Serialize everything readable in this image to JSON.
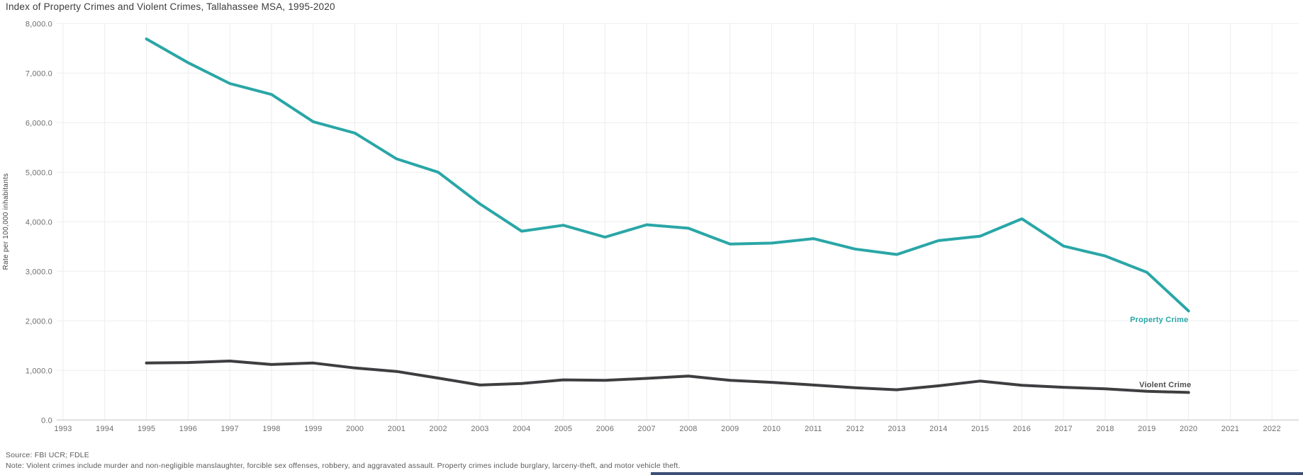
{
  "title": "Index of Property Crimes and Violent Crimes, Tallahassee MSA, 1995-2020",
  "source": "Source: FBI UCR; FDLE",
  "note": "Note: Violent crimes include murder and non-negligible manslaughter, forcible sex offenses, robbery, and aggravated assault. Property crimes include burglary, larceny-theft, and motor vehicle theft.",
  "colors": {
    "property_line": "#2aa6a7",
    "violent_line": "#3e3e41",
    "violent_label": "#4d4d4f",
    "gridline": "#ededed",
    "axis_line": "#d2d2d2",
    "tick_text": "#6e6e6e",
    "title_text": "#3c3c3c",
    "footer_bar": "#3d4f78",
    "background": "#ffffff"
  },
  "chart_data": {
    "type": "line",
    "title": "Index of Property Crimes and Violent Crimes, Tallahassee MSA, 1995-2020",
    "xlabel": "",
    "ylabel": "Rate per 100,000 inhabitants",
    "xlim": [
      1993,
      2022
    ],
    "ylim": [
      0,
      8000
    ],
    "grid": true,
    "legend_position": "line-end-labels",
    "x_tick_years": [
      1993,
      1994,
      1995,
      1996,
      1997,
      1998,
      1999,
      2000,
      2001,
      2002,
      2003,
      2004,
      2005,
      2006,
      2007,
      2008,
      2009,
      2010,
      2011,
      2012,
      2013,
      2014,
      2015,
      2016,
      2017,
      2018,
      2019,
      2020,
      2021,
      2022
    ],
    "y_tick_values": [
      8000,
      7000,
      6000,
      5000,
      4000,
      3000,
      2000,
      1000,
      0
    ],
    "y_tick_labels": [
      "8,000.0",
      "7,000.0",
      "6,000.0",
      "5,000.0",
      "4,000.0",
      "3,000.0",
      "2,000.0",
      "1,000.0",
      "0.0"
    ],
    "x": [
      1995,
      1996,
      1997,
      1998,
      1999,
      2000,
      2001,
      2002,
      2003,
      2004,
      2005,
      2006,
      2007,
      2008,
      2009,
      2010,
      2011,
      2012,
      2013,
      2014,
      2015,
      2016,
      2017,
      2018,
      2019,
      2020
    ],
    "series": [
      {
        "name": "Property Crime",
        "color": "#2aa6a7",
        "values": [
          7690,
          7210,
          6790,
          6570,
          6020,
          5790,
          5270,
          5000,
          4360,
          3810,
          3930,
          3690,
          3940,
          3870,
          3550,
          3570,
          3660,
          3450,
          3340,
          3620,
          3710,
          4060,
          3510,
          3310,
          2980,
          2200
        ]
      },
      {
        "name": "Violent Crime",
        "color": "#3e3e41",
        "values": [
          1150,
          1160,
          1190,
          1120,
          1150,
          1050,
          980,
          845,
          705,
          735,
          810,
          800,
          840,
          885,
          800,
          760,
          705,
          650,
          610,
          690,
          785,
          700,
          660,
          630,
          580,
          555
        ]
      }
    ]
  }
}
